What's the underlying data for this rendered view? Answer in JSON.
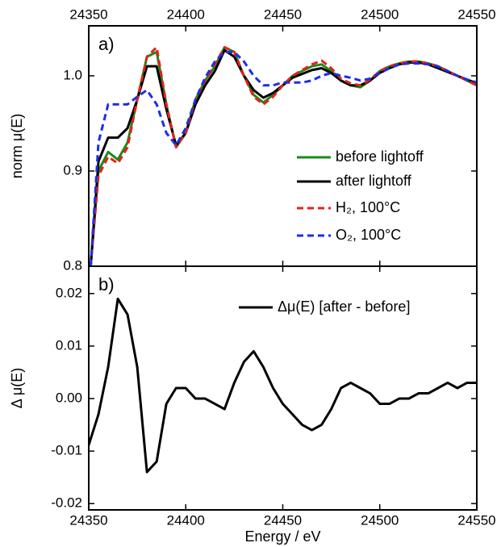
{
  "chart_data": [
    {
      "type": "line",
      "annotation": "a)",
      "ylabel": "norm μ(E)",
      "x": [
        24351,
        24355,
        24360,
        24365,
        24370,
        24375,
        24380,
        24385,
        24390,
        24395,
        24400,
        24405,
        24410,
        24415,
        24420,
        24425,
        24430,
        24435,
        24440,
        24445,
        24450,
        24455,
        24460,
        24465,
        24470,
        24475,
        24480,
        24485,
        24490,
        24495,
        24500,
        24505,
        24510,
        24515,
        24520,
        24525,
        24530,
        24535,
        24540,
        24545,
        24550
      ],
      "series": [
        {
          "name": "before lightoff",
          "color": "#1a8a1a",
          "dashed": false,
          "values": [
            0.8,
            0.9,
            0.92,
            0.912,
            0.93,
            0.975,
            1.02,
            1.025,
            0.97,
            0.925,
            0.94,
            0.975,
            0.995,
            1.01,
            1.03,
            1.025,
            1.0,
            0.98,
            0.972,
            0.98,
            0.99,
            1.0,
            1.005,
            1.01,
            1.012,
            1.005,
            0.995,
            0.99,
            0.988,
            0.995,
            1.005,
            1.01,
            1.013,
            1.015,
            1.015,
            1.013,
            1.01,
            1.005,
            1.0,
            0.995,
            0.99
          ]
        },
        {
          "name": "after lightoff",
          "color": "#000000",
          "dashed": false,
          "values": [
            0.8,
            0.91,
            0.935,
            0.935,
            0.945,
            0.975,
            1.01,
            1.01,
            0.965,
            0.927,
            0.94,
            0.97,
            0.99,
            1.005,
            1.027,
            1.02,
            1.0,
            0.985,
            0.977,
            0.982,
            0.99,
            0.998,
            1.002,
            1.006,
            1.008,
            1.003,
            0.995,
            0.99,
            0.99,
            0.995,
            1.003,
            1.008,
            1.012,
            1.014,
            1.014,
            1.012,
            1.008,
            1.004,
            1.0,
            0.996,
            0.992
          ]
        },
        {
          "name": "H₂, 100°C",
          "color": "#e8201c",
          "dashed": true,
          "values": [
            0.8,
            0.895,
            0.915,
            0.908,
            0.925,
            0.975,
            1.02,
            1.03,
            0.97,
            0.925,
            0.94,
            0.975,
            0.995,
            1.012,
            1.03,
            1.025,
            1.0,
            0.978,
            0.97,
            0.978,
            0.99,
            1.0,
            1.006,
            1.012,
            1.016,
            1.008,
            0.997,
            0.992,
            0.99,
            0.996,
            1.005,
            1.01,
            1.013,
            1.015,
            1.015,
            1.013,
            1.01,
            1.005,
            1.0,
            0.995,
            0.99
          ]
        },
        {
          "name": "O₂, 100°C",
          "color": "#1c2ee8",
          "dashed": true,
          "values": [
            0.8,
            0.93,
            0.97,
            0.97,
            0.97,
            0.978,
            0.985,
            0.97,
            0.94,
            0.927,
            0.945,
            0.975,
            0.998,
            1.015,
            1.025,
            1.025,
            1.015,
            1.0,
            0.99,
            0.99,
            0.993,
            0.993,
            0.993,
            0.995,
            1.0,
            1.003,
            1.0,
            0.998,
            0.995,
            0.997,
            1.003,
            1.008,
            1.012,
            1.013,
            1.013,
            1.012,
            1.01,
            1.005,
            1.0,
            0.996,
            0.993
          ]
        }
      ],
      "xlim": [
        24350,
        24550
      ],
      "xticks": [
        24350,
        24400,
        24450,
        24500,
        24550
      ],
      "ylim": [
        0.8,
        1.0525
      ],
      "yticks": [
        0.8,
        0.9,
        {
          "value": 1.0,
          "label": "1.0"
        }
      ]
    },
    {
      "type": "line",
      "annotation": "b)",
      "ylabel": "Δ μ(E)",
      "xlabel": "Energy / eV",
      "x": [
        24349,
        24355,
        24360,
        24365,
        24370,
        24375,
        24380,
        24385,
        24390,
        24395,
        24400,
        24405,
        24410,
        24415,
        24420,
        24425,
        24430,
        24435,
        24440,
        24445,
        24450,
        24455,
        24460,
        24465,
        24470,
        24475,
        24480,
        24485,
        24490,
        24495,
        24500,
        24505,
        24510,
        24515,
        24520,
        24525,
        24530,
        24535,
        24540,
        24545,
        24550
      ],
      "series": [
        {
          "name": "Δμ(E) [after - before]",
          "color": "#000000",
          "dashed": false,
          "values": [
            -0.01,
            -0.003,
            0.006,
            0.019,
            0.016,
            0.006,
            -0.014,
            -0.012,
            -0.001,
            0.002,
            0.002,
            0.0,
            0.0,
            -0.001,
            -0.002,
            0.003,
            0.007,
            0.009,
            0.006,
            0.002,
            -0.001,
            -0.003,
            -0.005,
            -0.006,
            -0.005,
            -0.002,
            0.002,
            0.003,
            0.002,
            0.001,
            -0.001,
            -0.001,
            0.0,
            0.0,
            0.001,
            0.001,
            0.002,
            0.003,
            0.002,
            0.003,
            0.003
          ]
        }
      ],
      "xlim": [
        24350,
        24550
      ],
      "xticks": [
        24350,
        24400,
        24450,
        24500,
        24550
      ],
      "ylim": [
        -0.0212,
        0.0252
      ],
      "yticks": [
        -0.02,
        -0.01,
        {
          "value": 0,
          "label": "0.00"
        },
        0.01,
        0.02
      ]
    }
  ]
}
